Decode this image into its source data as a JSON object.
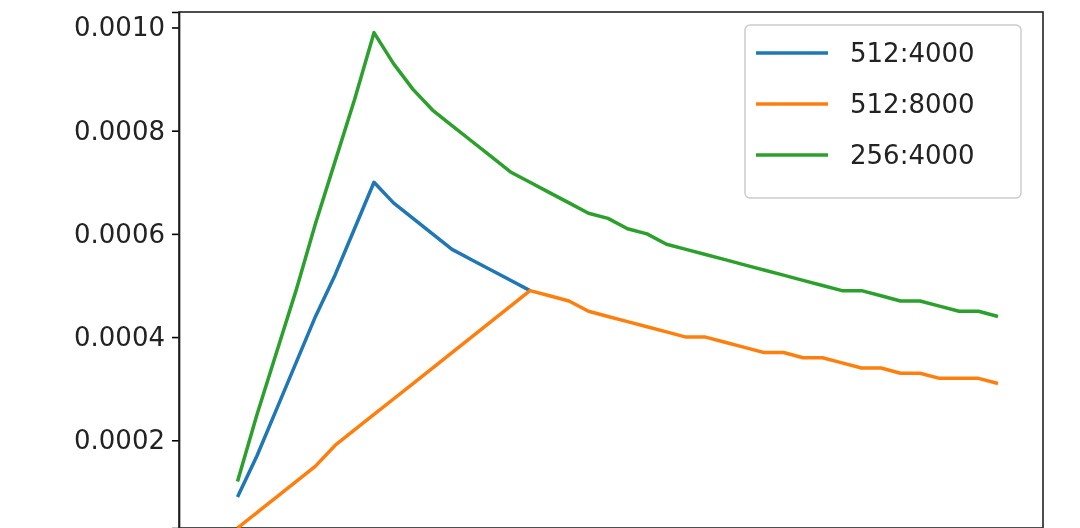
{
  "chart_data": {
    "type": "line",
    "categories": [
      null,
      null,
      null,
      null,
      null,
      null,
      null,
      null,
      null,
      null,
      null,
      null,
      null,
      null,
      null,
      null,
      null,
      null,
      null,
      null,
      null,
      null,
      null,
      null,
      null,
      null,
      null,
      null,
      null,
      null,
      null,
      null,
      null,
      null,
      null,
      null,
      null,
      null,
      null,
      null
    ],
    "series": [
      {
        "name": "512:4000",
        "color": "#1f77b4",
        "values": [
          9e-05,
          0.00017,
          0.00026,
          0.00035,
          0.00044,
          0.00052,
          0.00061,
          0.0007,
          0.00066,
          0.00063,
          0.0006,
          0.00057,
          0.00055,
          0.00053,
          0.00051,
          0.00049,
          null,
          null,
          null,
          null,
          null,
          null,
          null,
          null,
          null,
          null,
          null,
          null,
          null,
          null,
          null,
          null,
          null,
          null,
          null,
          null,
          null,
          null,
          null,
          null
        ]
      },
      {
        "name": "512:8000",
        "color": "#ff7f0e",
        "values": [
          3e-05,
          6e-05,
          9e-05,
          0.00012,
          0.00015,
          0.00019,
          0.00022,
          0.00025,
          0.00028,
          0.00031,
          0.00034,
          0.00037,
          0.0004,
          0.00043,
          0.00046,
          0.00049,
          0.00048,
          0.00047,
          0.00045,
          0.00044,
          0.00043,
          0.00042,
          0.00041,
          0.0004,
          0.0004,
          0.00039,
          0.00038,
          0.00037,
          0.00037,
          0.00036,
          0.00036,
          0.00035,
          0.00034,
          0.00034,
          0.00033,
          0.00033,
          0.00032,
          0.00032,
          0.00032,
          0.00031
        ]
      },
      {
        "name": "256:4000",
        "color": "#2ca02c",
        "values": [
          0.00012,
          0.00025,
          0.00037,
          0.00049,
          0.00062,
          0.00074,
          0.00086,
          0.00099,
          0.00093,
          0.00088,
          0.00084,
          0.00081,
          0.00078,
          0.00075,
          0.00072,
          0.0007,
          0.00068,
          0.00066,
          0.00064,
          0.00063,
          0.00061,
          0.0006,
          0.00058,
          0.00057,
          0.00056,
          0.00055,
          0.00054,
          0.00053,
          0.00052,
          0.00051,
          0.0005,
          0.00049,
          0.00049,
          0.00048,
          0.00047,
          0.00047,
          0.00046,
          0.00045,
          0.00045,
          0.00044
        ]
      }
    ],
    "ylim": [
      3e-05,
      0.00103
    ],
    "yticks": [
      {
        "value": 0.0002,
        "label": "0.0002"
      },
      {
        "value": 0.0004,
        "label": "0.0004"
      },
      {
        "value": 0.0006,
        "label": "0.0006"
      },
      {
        "value": 0.0008,
        "label": "0.0008"
      },
      {
        "value": 0.001,
        "label": "0.0010"
      }
    ],
    "tick_labels": "y",
    "grid": false,
    "legend": "top right",
    "marker": "none",
    "line_style": "solid"
  }
}
